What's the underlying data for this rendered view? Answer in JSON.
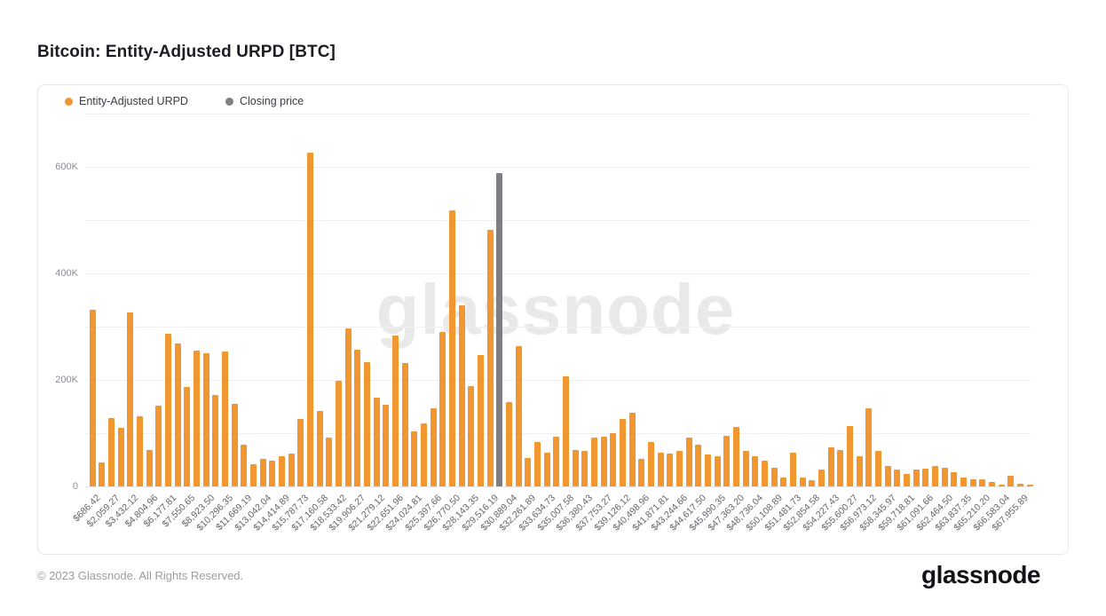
{
  "title": "Bitcoin: Entity-Adjusted URPD [BTC]",
  "legend": [
    {
      "label": "Entity-Adjusted URPD",
      "color": "#F29630"
    },
    {
      "label": "Closing price",
      "color": "#7E7E83"
    }
  ],
  "watermark": "glassnode",
  "footer": {
    "copyright": "© 2023 Glassnode. All Rights Reserved.",
    "brand": "glassnode"
  },
  "chart_data": {
    "type": "bar",
    "title": "Bitcoin: Entity-Adjusted URPD [BTC]",
    "xlabel": "",
    "ylabel": "",
    "ylim": [
      0,
      700000
    ],
    "grid": true,
    "gridline_step": 100000,
    "legend_position": "top-left",
    "x_tick_rotation": -45,
    "ytick_values": [
      0,
      200000,
      400000,
      600000
    ],
    "ytick_labels": [
      "0",
      "200K",
      "400K",
      "600K"
    ],
    "categories": [
      "$686.42",
      "$2,059.27",
      "$3,432.12",
      "$4,804.96",
      "$6,177.81",
      "$7,550.65",
      "$8,923.50",
      "$10,296.35",
      "$11,669.19",
      "$13,042.04",
      "$14,414.89",
      "$15,787.73",
      "$17,160.58",
      "$18,533.42",
      "$19,906.27",
      "$21,279.12",
      "$22,651.96",
      "$24,024.81",
      "$25,397.66",
      "$26,770.50",
      "$28,143.35",
      "$29,516.19",
      "$30,889.04",
      "$32,261.89",
      "$33,634.73",
      "$35,007.58",
      "$36,380.43",
      "$37,753.27",
      "$39,126.12",
      "$40,498.96",
      "$41,871.81",
      "$43,244.66",
      "$44,617.50",
      "$45,990.35",
      "$47,363.20",
      "$48,736.04",
      "$50,108.89",
      "$51,481.73",
      "$52,854.58",
      "$54,227.43",
      "$55,600.27",
      "$56,973.12",
      "$58,345.97",
      "$59,718.81",
      "$61,091.66",
      "$62,464.50",
      "$63,837.35",
      "$65,210.20",
      "$66,583.04",
      "$67,955.89"
    ],
    "labels_every_n_bars": 2,
    "series": [
      {
        "name": "Entity-Adjusted URPD",
        "color": "#F29630",
        "values": [
          332000,
          45000,
          128000,
          110000,
          326000,
          131000,
          68000,
          151000,
          286000,
          268000,
          186000,
          255000,
          250000,
          172000,
          253000,
          155000,
          78000,
          42000,
          52000,
          48000,
          56000,
          62000,
          127000,
          627000,
          142000,
          91000,
          198000,
          297000,
          257000,
          234000,
          167000,
          153000,
          284000,
          231000,
          104000,
          118000,
          147000,
          290000,
          518000,
          340000,
          188000,
          246000,
          482000,
          null,
          158000,
          263000,
          53000,
          84000,
          63000,
          93000,
          206000,
          68000,
          66000,
          92000,
          93000,
          100000,
          126000,
          138000,
          52000,
          84000,
          64000,
          61000,
          67000,
          92000,
          79000,
          60000,
          56000,
          95000,
          112000,
          66000,
          56000,
          49000,
          35000,
          16000,
          63000,
          17000,
          12000,
          31000,
          73000,
          68000,
          113000,
          56000,
          146000,
          67000,
          38000,
          32000,
          23000,
          32000,
          34000,
          38000,
          35000,
          26000,
          17000,
          13000,
          14000,
          9000,
          3000,
          20000,
          5000,
          4000
        ]
      }
    ],
    "closing_price_marker": {
      "name": "Closing price",
      "color": "#7E7E83",
      "slot_index": 43,
      "value": 588000
    }
  }
}
